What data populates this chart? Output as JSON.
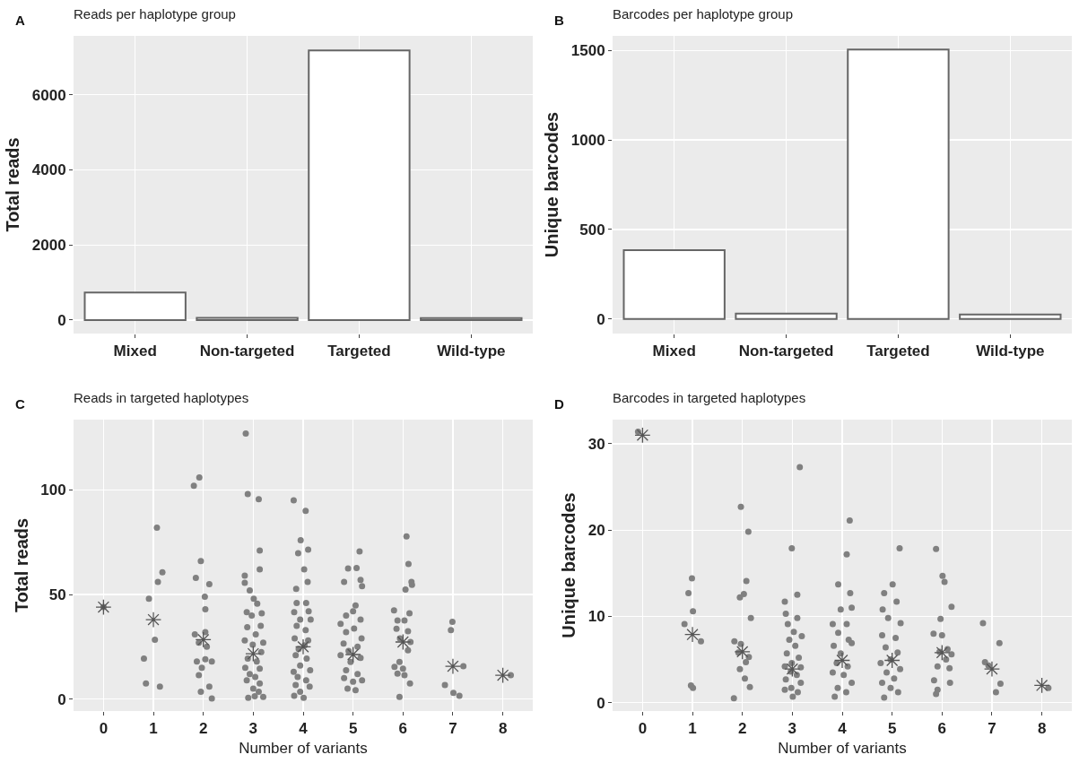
{
  "chart_data": [
    {
      "type": "bar",
      "title": "Reads per haplotype group",
      "annotations": [
        "A"
      ],
      "ylabel": "Total reads",
      "categories": [
        "Mixed",
        "Non-targeted",
        "Targeted",
        "Wild-type"
      ],
      "values": [
        730,
        60,
        7180,
        50
      ],
      "color": "#ffffff",
      "ylim": [
        -360,
        7570
      ],
      "yticks": [
        0,
        2000,
        4000,
        6000
      ],
      "grid": true
    },
    {
      "type": "bar",
      "title": "Barcodes per haplotype group",
      "annotations": [
        "B"
      ],
      "ylabel": "Unique barcodes",
      "categories": [
        "Mixed",
        "Non-targeted",
        "Targeted",
        "Wild-type"
      ],
      "values": [
        385,
        30,
        1505,
        25
      ],
      "color": "#ffffff",
      "ylim": [
        -81,
        1581
      ],
      "yticks": [
        0,
        500,
        1000,
        1500
      ],
      "grid": true
    },
    {
      "type": "scatter",
      "title": "Reads in targeted haplotypes",
      "annotations": [
        "C"
      ],
      "xlabel": "Number of variants",
      "ylabel": "Total reads",
      "xlim": [
        -0.6,
        8.6
      ],
      "xticks": [
        0,
        1,
        2,
        3,
        4,
        5,
        6,
        7,
        8
      ],
      "ylim": [
        -5.7,
        133.6
      ],
      "yticks": [
        0,
        50,
        100
      ],
      "grid": true,
      "series": [
        {
          "color": "#808080",
          "marker": "circle",
          "x": [
            0,
            0.91,
            1.07,
            1.18,
            1.09,
            1.03,
            0.81,
            0.85,
            1.13,
            1.81,
            1.92,
            1.95,
            1.85,
            2.12,
            2.03,
            2.04,
            1.83,
            2.04,
            1.91,
            2.07,
            1.87,
            2.04,
            1.97,
            1.91,
            2.17,
            2.12,
            1.95,
            2.17,
            2.85,
            2.89,
            3.11,
            3.13,
            3.13,
            2.83,
            2.83,
            2.93,
            3.01,
            3.08,
            2.87,
            3.17,
            2.97,
            2.88,
            3.15,
            3.05,
            2.83,
            3.2,
            2.99,
            3.16,
            2.89,
            3.07,
            2.84,
            3.13,
            2.93,
            3.04,
            2.87,
            3.13,
            3,
            3.11,
            3.03,
            2.9,
            3.2,
            3.81,
            4.05,
            3.95,
            3.9,
            4.1,
            4.02,
            4.09,
            3.86,
            3.87,
            4.06,
            4.11,
            3.82,
            3.94,
            4.15,
            3.87,
            4.05,
            3.83,
            4.1,
            3.91,
            4.03,
            3.85,
            4.07,
            3.94,
            3.81,
            4.14,
            3.89,
            4.06,
            3.85,
            4.13,
            3.94,
            3.82,
            4.01,
            5.13,
            4.9,
            5.07,
            4.82,
            5.18,
            5.15,
            5.05,
            5,
            4.86,
            5.15,
            4.75,
            5.02,
            4.86,
            5.17,
            4.81,
            5.09,
            4.91,
            4.75,
            5.15,
            4.95,
            4.86,
            5.09,
            4.82,
            5.18,
            5,
            4.89,
            5.05,
            6.07,
            6.11,
            6.17,
            6.18,
            6.05,
            5.82,
            6.13,
            5.89,
            6.03,
            6.1,
            5.87,
            5.94,
            6.15,
            6.1,
            5.83,
            5.93,
            6,
            5.89,
            6.03,
            6.14,
            5.93,
            6.99,
            6.96,
            7.21,
            6.84,
            7.01,
            7.13,
            8.16
          ],
          "values": [
            44,
            48,
            82,
            60.6,
            56,
            28.4,
            19.4,
            7.5,
            6,
            102,
            106,
            66,
            58,
            55,
            49,
            43,
            31,
            32,
            27,
            25,
            18,
            19,
            15,
            11.4,
            18,
            6,
            3.5,
            0.3,
            127,
            98,
            95.6,
            71,
            62,
            59,
            55.6,
            52,
            48,
            45.6,
            41.6,
            41,
            40,
            34.4,
            35,
            31,
            28,
            27,
            26,
            22.5,
            19.4,
            18,
            15,
            14.6,
            12,
            10.6,
            9,
            7.5,
            5,
            3.5,
            1.4,
            0.6,
            1,
            95,
            90,
            76,
            69.7,
            71.4,
            62,
            56,
            52.7,
            46,
            46,
            42,
            41.6,
            38,
            38,
            35,
            33,
            29,
            28,
            24,
            25.7,
            21,
            19.4,
            16,
            13,
            13.8,
            10.6,
            9,
            6.7,
            6,
            3.5,
            1.6,
            0.6,
            70.6,
            62.5,
            62.7,
            56,
            54,
            57,
            44.8,
            42,
            40,
            38,
            36,
            33.7,
            32,
            29,
            26.5,
            25,
            23,
            21,
            19.7,
            17.8,
            13.8,
            12,
            10,
            9,
            8.3,
            5,
            4.3,
            77.8,
            64.6,
            56,
            54.6,
            52.4,
            42.4,
            41,
            37.6,
            37.6,
            32.4,
            33.6,
            29,
            27.3,
            23.3,
            15.4,
            17.8,
            14.6,
            12.2,
            11.4,
            7.5,
            1,
            37,
            33,
            15.7,
            6.7,
            3,
            1.6,
            11.4
          ]
        },
        {
          "color": "#555555",
          "marker": "cross",
          "x": [
            0,
            1,
            2,
            3,
            4,
            5,
            6,
            7,
            8
          ],
          "values": [
            44,
            38,
            28.4,
            21.7,
            25,
            21.3,
            27.3,
            15.7,
            11.4
          ]
        }
      ]
    },
    {
      "type": "scatter",
      "title": "Barcodes in targeted haplotypes",
      "annotations": [
        "D"
      ],
      "xlabel": "Number of variants",
      "ylabel": "Unique barcodes",
      "xlim": [
        -0.6,
        8.6
      ],
      "xticks": [
        0,
        1,
        2,
        3,
        4,
        5,
        6,
        7,
        8
      ],
      "ylim": [
        -0.97,
        32.8
      ],
      "yticks": [
        0,
        10,
        20,
        30
      ],
      "grid": true,
      "series": [
        {
          "color": "#808080",
          "marker": "circle",
          "x": [
            -0.09,
            0.99,
            0.92,
            1.01,
            0.84,
            1.17,
            0.97,
            1.01,
            1.97,
            2.12,
            2.08,
            1.95,
            2.03,
            2.17,
            1.84,
            1.97,
            1.92,
            2.13,
            2.07,
            1.95,
            2.05,
            2.15,
            1.83,
            3.15,
            2.99,
            2.85,
            3.1,
            2.87,
            3.1,
            2.91,
            3.03,
            3.19,
            2.94,
            3.06,
            2.89,
            3.13,
            2.99,
            2.85,
            3.17,
            2.97,
            3.09,
            2.87,
            3.17,
            2.98,
            2.85,
            3.11,
            3.01,
            4.15,
            4.09,
            3.92,
            4.16,
            3.97,
            4.19,
            3.81,
            4.09,
            3.92,
            4.13,
            3.83,
            4.19,
            3.97,
            3.89,
            4.11,
            3.81,
            4.03,
            4.19,
            3.91,
            4.08,
            3.85,
            5.15,
            5.01,
            4.84,
            5.09,
            4.81,
            4.92,
            5.17,
            4.8,
            5.07,
            4.87,
            5.11,
            4.97,
            4.77,
            5.16,
            4.89,
            5.04,
            4.8,
            4.97,
            5.12,
            4.84,
            5.88,
            6.01,
            6.05,
            6.19,
            5.97,
            5.83,
            6,
            6.11,
            5.95,
            6.19,
            6.08,
            5.91,
            6.15,
            5.84,
            6.16,
            5.91,
            5.88,
            6.82,
            7.15,
            6.86,
            6.93,
            7.17,
            7.08,
            8.13
          ],
          "values": [
            31.4,
            14.4,
            12.7,
            10.6,
            9.1,
            7.1,
            2,
            1.7,
            22.7,
            19.8,
            14.1,
            12.2,
            12.6,
            9.8,
            7.1,
            6.8,
            5.8,
            5.3,
            4.7,
            3.9,
            2.8,
            1.8,
            0.5,
            27.3,
            17.9,
            11.7,
            12.5,
            10.3,
            9.8,
            9.1,
            8.2,
            7.7,
            7.3,
            6.6,
            5.7,
            5.2,
            4.6,
            4.2,
            4.1,
            3.6,
            3.2,
            2.7,
            2.3,
            1.7,
            1.5,
            1.2,
            0.7,
            21.1,
            17.2,
            13.7,
            12.7,
            10.8,
            11,
            9.1,
            9.1,
            8.1,
            7.3,
            6.6,
            6.9,
            5.7,
            4.6,
            4.2,
            3.5,
            3.2,
            2.3,
            1.7,
            1.2,
            0.7,
            17.9,
            13.7,
            12.7,
            11.7,
            10.8,
            9.8,
            9.2,
            7.8,
            7.5,
            6.4,
            5.8,
            5,
            4.6,
            3.9,
            3.5,
            2.8,
            2.3,
            1.7,
            1.2,
            0.6,
            17.8,
            14.7,
            14,
            11.1,
            9.7,
            8,
            7.8,
            6.2,
            5.9,
            5.6,
            5,
            4.2,
            4,
            2.6,
            2.3,
            1.5,
            1,
            9.2,
            6.9,
            4.7,
            4.3,
            2.2,
            1.2,
            1.7
          ]
        },
        {
          "color": "#555555",
          "marker": "cross",
          "x": [
            0,
            1,
            2,
            3,
            4,
            5,
            6,
            7,
            8
          ],
          "values": [
            31,
            7.9,
            5.9,
            3.9,
            4.9,
            4.9,
            5.8,
            3.9,
            2
          ]
        }
      ]
    }
  ]
}
